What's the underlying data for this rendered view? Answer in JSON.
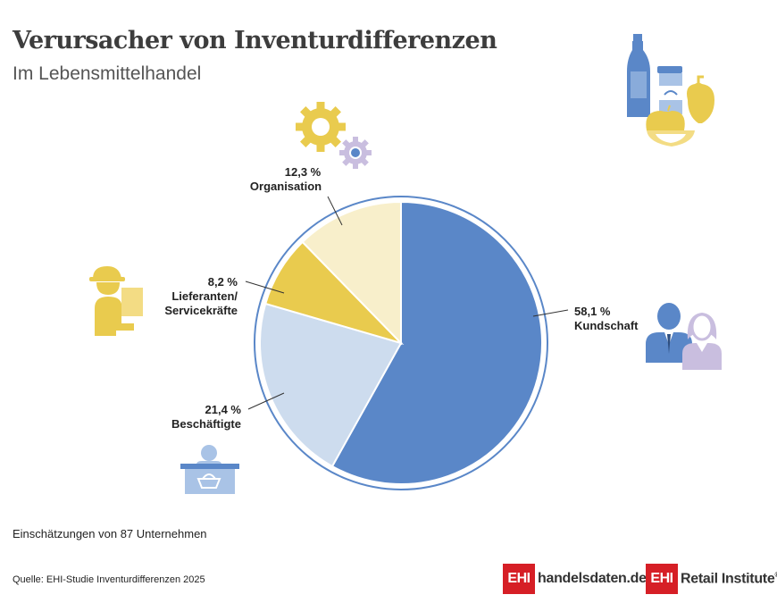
{
  "header": {
    "title": "Verursacher von Inventurdifferenzen",
    "subtitle": "Im Lebensmittelhandel"
  },
  "chart_data": {
    "type": "pie",
    "start_angle_deg": 0,
    "direction": "clockwise",
    "slices": [
      {
        "label": "Kundschaft",
        "value": 58.1,
        "value_label": "58,1 %",
        "color": "#5a87c8",
        "icon": "customers-icon"
      },
      {
        "label": "Beschäftigte",
        "value": 21.4,
        "value_label": "21,4 %",
        "color": "#cddcee",
        "icon": "cashier-icon"
      },
      {
        "label": "Lieferanten/ Servicekräfte",
        "label_lines": [
          "Lieferanten/",
          "Servicekräfte"
        ],
        "value": 8.2,
        "value_label": "8,2 %",
        "color": "#e9cb4e",
        "icon": "delivery-person-icon"
      },
      {
        "label": "Organisation",
        "value": 12.3,
        "value_label": "12,3 %",
        "color": "#f8efcb",
        "icon": "gears-icon"
      }
    ],
    "ring_color": "#5a87c8",
    "legend": "none"
  },
  "decoration": {
    "groceries_icon": "groceries-icon",
    "accent_blue": "#5a87c8",
    "accent_yellow": "#e9cb4e",
    "accent_lilac": "#c9bedf"
  },
  "footer": {
    "note": "Einschätzungen von 87 Unternehmen",
    "source": "Quelle: EHI-Studie Inventurdifferenzen 2025",
    "logo1_box": "EHI",
    "logo1_text": "handelsdaten.de",
    "logo2_box": "EHI",
    "logo2_text": "Retail Institute",
    "logo2_mark": "®"
  }
}
